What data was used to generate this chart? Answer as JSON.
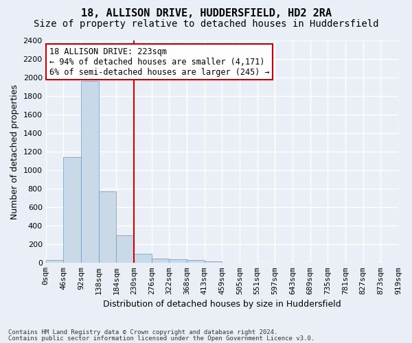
{
  "title_line1": "18, ALLISON DRIVE, HUDDERSFIELD, HD2 2RA",
  "title_line2": "Size of property relative to detached houses in Huddersfield",
  "xlabel": "Distribution of detached houses by size in Huddersfield",
  "ylabel": "Number of detached properties",
  "bar_color": "#c9d9e8",
  "bar_edge_color": "#6699bb",
  "bin_labels": [
    "0sqm",
    "46sqm",
    "92sqm",
    "138sqm",
    "184sqm",
    "230sqm",
    "276sqm",
    "322sqm",
    "368sqm",
    "413sqm",
    "459sqm",
    "505sqm",
    "551sqm",
    "597sqm",
    "643sqm",
    "689sqm",
    "735sqm",
    "781sqm",
    "827sqm",
    "873sqm",
    "919sqm"
  ],
  "bar_values": [
    35,
    1140,
    1960,
    775,
    300,
    100,
    48,
    40,
    30,
    18,
    0,
    0,
    0,
    0,
    0,
    0,
    0,
    0,
    0,
    0
  ],
  "ylim": [
    0,
    2400
  ],
  "yticks": [
    0,
    200,
    400,
    600,
    800,
    1000,
    1200,
    1400,
    1600,
    1800,
    2000,
    2200,
    2400
  ],
  "property_bin_index": 4,
  "vline_color": "#cc0000",
  "annotation_text": "18 ALLISON DRIVE: 223sqm\n← 94% of detached houses are smaller (4,171)\n6% of semi-detached houses are larger (245) →",
  "annotation_box_color": "#ffffff",
  "annotation_box_edge_color": "#cc0000",
  "footnote1": "Contains HM Land Registry data © Crown copyright and database right 2024.",
  "footnote2": "Contains public sector information licensed under the Open Government Licence v3.0.",
  "background_color": "#eaeff7",
  "plot_background": "#eaeff7",
  "grid_color": "#ffffff",
  "title_fontsize": 11,
  "subtitle_fontsize": 10,
  "label_fontsize": 9,
  "tick_fontsize": 8,
  "annotation_fontsize": 8.5
}
